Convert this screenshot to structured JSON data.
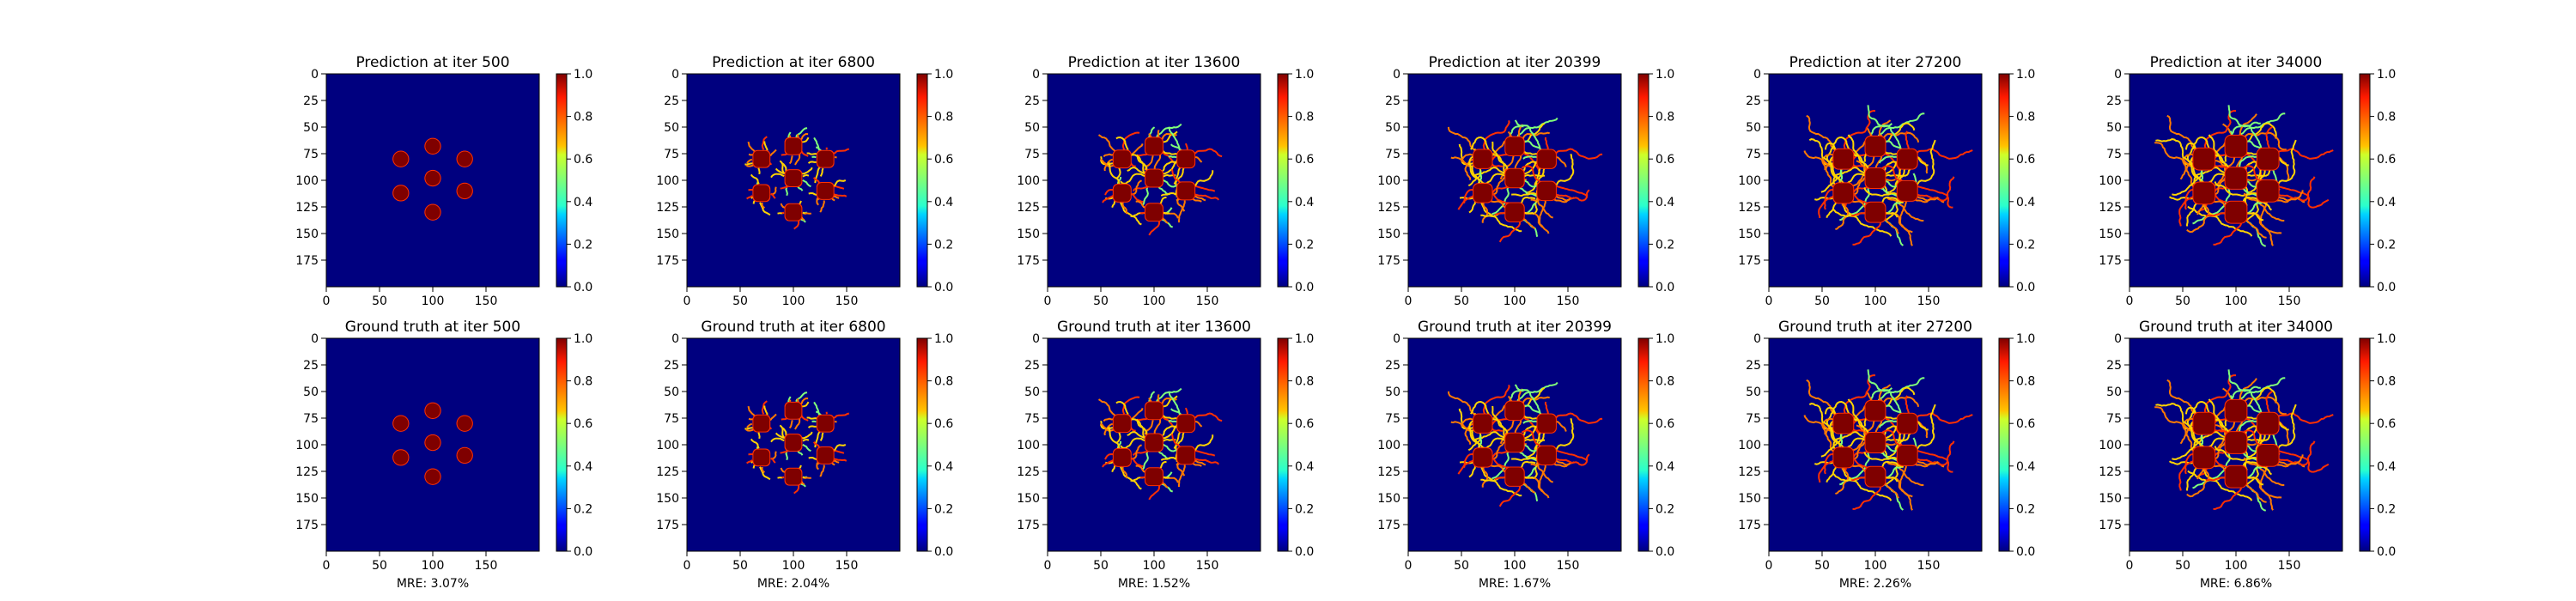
{
  "chart_data": {
    "type": "heatmap",
    "colormap": "jet",
    "grid": false,
    "rows": [
      {
        "label": "Prediction at iter",
        "iters": [
          "500",
          "6800",
          "13600",
          "20399",
          "27200",
          "34000"
        ]
      },
      {
        "label": "Ground truth at iter",
        "iters": [
          "500",
          "6800",
          "13600",
          "20399",
          "27200",
          "34000"
        ]
      }
    ],
    "panel_titles": [
      [
        "Prediction at iter 500",
        "Prediction at iter 6800",
        "Prediction at iter 13600",
        "Prediction at iter 20399",
        "Prediction at iter 27200",
        "Prediction at iter 34000"
      ],
      [
        "Ground truth at iter 500",
        "Ground truth at iter 6800",
        "Ground truth at iter 13600",
        "Ground truth at iter 20399",
        "Ground truth at iter 27200",
        "Ground truth at iter 34000"
      ]
    ],
    "xlim": [
      0,
      200
    ],
    "ylim": [
      200,
      0
    ],
    "x_ticks": [
      0,
      50,
      100,
      150
    ],
    "y_ticks": [
      0,
      25,
      50,
      75,
      100,
      125,
      150,
      175
    ],
    "colorbar_ticks": [
      "0.0",
      "0.2",
      "0.4",
      "0.6",
      "0.8",
      "1.0"
    ],
    "colorbar_range": [
      0,
      1
    ],
    "background_value": 0.0,
    "seed_value": 1.0,
    "seeds": [
      [
        100,
        68
      ],
      [
        70,
        80
      ],
      [
        130,
        80
      ],
      [
        100,
        98
      ],
      [
        70,
        112
      ],
      [
        130,
        110
      ],
      [
        100,
        130
      ]
    ],
    "growth_stage": [
      0.0,
      0.2,
      0.35,
      0.55,
      0.75,
      1.0
    ],
    "mre_labels": [
      "MRE: 3.07%",
      "MRE: 2.04%",
      "MRE: 1.52%",
      "MRE: 1.67%",
      "MRE: 2.26%",
      "MRE: 6.86%"
    ],
    "colors": {
      "background": "#00007f",
      "seed": "#7f0000",
      "edge": "#ff3000",
      "branch_hi": "#ffd400",
      "branch_mid": "#ff7a00",
      "branch_lo": "#80ff7a"
    }
  }
}
